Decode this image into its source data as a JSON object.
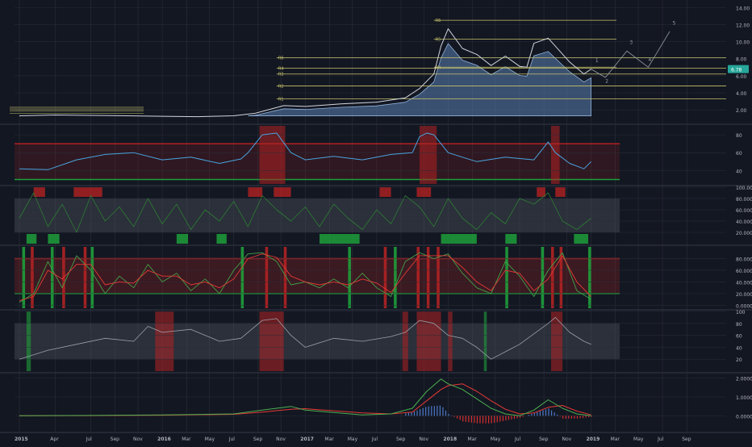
{
  "colors": {
    "background": "#131722",
    "grid": "#2a2e39",
    "axis_text": "#b2b5be",
    "bull": "#26a69a",
    "bear": "#ef5350",
    "band_fill": "#5b7fb0",
    "level_line": "#c6c26a",
    "red_zone": "#b22222",
    "green_zone": "#1f9e3a",
    "rsi_line": "#4aa3df",
    "macd_line": "#4caf50",
    "signal_line": "#e53935",
    "hist_pos": "#4a78c8",
    "hist_neg": "#d32f2f"
  },
  "chart_data": [
    {
      "type": "line",
      "panel": "price",
      "y_axis_ticks": [
        "14.00",
        "12.00",
        "10.00",
        "8.00",
        "6.00",
        "4.00",
        "2.00"
      ],
      "ylim": [
        0.5,
        14.5
      ],
      "last_price_label": "6.78",
      "last_price": 6.78,
      "level_labels": [
        "R6",
        "R4",
        "R3",
        "R2",
        "R1",
        "R6",
        "R5",
        "R4"
      ],
      "level_values": [
        8.1,
        6.9,
        6.2,
        4.8,
        3.3,
        12.5,
        10.3,
        7.0
      ],
      "wave_labels": [
        "1",
        "2",
        "3",
        "4",
        "5"
      ],
      "series": [
        {
          "x": [
            2015.0,
            2015.25,
            2015.5,
            2015.75,
            2016.0,
            2016.25,
            2016.5,
            2016.65,
            2016.85,
            2017.0,
            2017.25,
            2017.5,
            2017.7,
            2017.8,
            2017.9,
            2017.95,
            2018.0,
            2018.1,
            2018.2,
            2018.3,
            2018.4,
            2018.5,
            2018.55,
            2018.6,
            2018.7,
            2018.85,
            2018.95,
            2019.0
          ],
          "values": [
            1.3,
            1.4,
            1.35,
            1.3,
            1.25,
            1.2,
            1.3,
            1.6,
            2.5,
            2.4,
            2.7,
            2.9,
            3.4,
            4.5,
            6.2,
            9.5,
            11.5,
            9.2,
            8.5,
            7.2,
            8.3,
            7.1,
            7.0,
            9.8,
            10.4,
            7.6,
            6.2,
            6.78
          ]
        },
        {
          "x": [
            2019.0,
            2019.1,
            2019.25,
            2019.4,
            2019.55
          ],
          "values": [
            6.78,
            5.8,
            8.9,
            7.0,
            11.2
          ]
        }
      ]
    },
    {
      "type": "line",
      "panel": "rsi",
      "y_axis_ticks": [
        "80",
        "60",
        "40"
      ],
      "ylim": [
        25,
        90
      ],
      "series": [
        {
          "x": [
            2015.0,
            2015.2,
            2015.4,
            2015.6,
            2015.8,
            2016.0,
            2016.2,
            2016.4,
            2016.55,
            2016.6,
            2016.7,
            2016.8,
            2016.9,
            2017.0,
            2017.2,
            2017.4,
            2017.6,
            2017.75,
            2017.8,
            2017.85,
            2017.9,
            2018.0,
            2018.1,
            2018.2,
            2018.4,
            2018.6,
            2018.7,
            2018.75,
            2018.85,
            2018.95,
            2019.0
          ],
          "values": [
            42,
            41,
            52,
            58,
            60,
            52,
            55,
            48,
            53,
            60,
            80,
            82,
            60,
            52,
            56,
            52,
            58,
            60,
            78,
            82,
            80,
            60,
            55,
            50,
            55,
            52,
            72,
            60,
            48,
            42,
            50
          ]
        }
      ]
    },
    {
      "type": "line",
      "panel": "oscillator",
      "y_axis_ticks": [
        "100.0000",
        "80.0000",
        "60.0000",
        "40.0000",
        "20.0000"
      ],
      "ylim": [
        0,
        100
      ],
      "series": [
        {
          "x": [
            2015.0,
            2015.1,
            2015.2,
            2015.3,
            2015.4,
            2015.5,
            2015.6,
            2015.7,
            2015.8,
            2015.9,
            2016.0,
            2016.1,
            2016.2,
            2016.3,
            2016.4,
            2016.5,
            2016.6,
            2016.7,
            2016.8,
            2016.9,
            2017.0,
            2017.1,
            2017.2,
            2017.3,
            2017.4,
            2017.5,
            2017.6,
            2017.7,
            2017.8,
            2017.9,
            2018.0,
            2018.1,
            2018.2,
            2018.3,
            2018.4,
            2018.5,
            2018.6,
            2018.7,
            2018.8,
            2018.9,
            2019.0
          ],
          "values": [
            45,
            90,
            30,
            70,
            20,
            85,
            40,
            65,
            30,
            80,
            35,
            70,
            25,
            60,
            40,
            75,
            30,
            85,
            60,
            40,
            65,
            30,
            70,
            45,
            25,
            60,
            35,
            85,
            65,
            30,
            80,
            45,
            25,
            55,
            35,
            80,
            70,
            90,
            40,
            25,
            45
          ]
        }
      ]
    },
    {
      "type": "line",
      "panel": "stochastic",
      "y_axis_ticks": [
        "80.0000",
        "60.0000",
        "40.0000",
        "20.0000",
        "0.0000"
      ],
      "ylim": [
        -5,
        100
      ],
      "series": [
        {
          "x": [
            2015.0,
            2015.1,
            2015.2,
            2015.3,
            2015.4,
            2015.5,
            2015.6,
            2015.7,
            2015.8,
            2015.9,
            2016.0,
            2016.1,
            2016.2,
            2016.3,
            2016.4,
            2016.5,
            2016.6,
            2016.7,
            2016.8,
            2016.9,
            2017.0,
            2017.1,
            2017.2,
            2017.3,
            2017.4,
            2017.5,
            2017.6,
            2017.7,
            2017.8,
            2017.9,
            2018.0,
            2018.1,
            2018.2,
            2018.3,
            2018.4,
            2018.5,
            2018.6,
            2018.7,
            2018.8,
            2018.9,
            2019.0
          ],
          "values": [
            5,
            20,
            75,
            30,
            85,
            60,
            20,
            50,
            30,
            70,
            40,
            55,
            25,
            45,
            20,
            60,
            88,
            90,
            75,
            35,
            40,
            30,
            45,
            30,
            55,
            30,
            15,
            75,
            90,
            80,
            88,
            55,
            30,
            20,
            75,
            50,
            15,
            60,
            90,
            25,
            10
          ]
        },
        {
          "x": [
            2015.0,
            2015.1,
            2015.2,
            2015.3,
            2015.4,
            2015.5,
            2015.6,
            2015.7,
            2015.8,
            2015.9,
            2016.0,
            2016.1,
            2016.2,
            2016.3,
            2016.4,
            2016.5,
            2016.6,
            2016.7,
            2016.8,
            2016.9,
            2017.0,
            2017.1,
            2017.2,
            2017.3,
            2017.4,
            2017.5,
            2017.6,
            2017.7,
            2017.8,
            2017.9,
            2018.0,
            2018.1,
            2018.2,
            2018.3,
            2018.4,
            2018.5,
            2018.6,
            2018.7,
            2018.8,
            2018.9,
            2019.0
          ],
          "values": [
            8,
            15,
            60,
            45,
            70,
            70,
            35,
            40,
            38,
            60,
            50,
            50,
            35,
            40,
            30,
            45,
            80,
            88,
            82,
            50,
            40,
            35,
            40,
            35,
            45,
            38,
            22,
            55,
            85,
            85,
            85,
            65,
            40,
            25,
            60,
            55,
            25,
            45,
            85,
            40,
            15
          ]
        }
      ]
    },
    {
      "type": "line",
      "panel": "rsi2",
      "y_axis_ticks": [
        "100",
        "80",
        "60",
        "40",
        "20"
      ],
      "ylim": [
        0,
        100
      ],
      "series": [
        {
          "x": [
            2015.0,
            2015.2,
            2015.4,
            2015.6,
            2015.8,
            2015.9,
            2016.0,
            2016.2,
            2016.4,
            2016.55,
            2016.7,
            2016.8,
            2016.9,
            2017.0,
            2017.2,
            2017.4,
            2017.6,
            2017.7,
            2017.8,
            2017.9,
            2018.0,
            2018.1,
            2018.2,
            2018.3,
            2018.5,
            2018.7,
            2018.75,
            2018.85,
            2018.95,
            2019.0
          ],
          "values": [
            20,
            35,
            45,
            55,
            50,
            75,
            65,
            70,
            50,
            55,
            85,
            88,
            60,
            40,
            55,
            50,
            58,
            65,
            85,
            80,
            60,
            55,
            40,
            20,
            45,
            80,
            90,
            65,
            50,
            45
          ]
        }
      ]
    },
    {
      "type": "line",
      "panel": "macd",
      "y_axis_ticks": [
        "2.0000",
        "1.0000",
        "0.0000"
      ],
      "ylim": [
        -0.8,
        2.2
      ],
      "series": [
        {
          "x": [
            2015.0,
            2015.5,
            2016.0,
            2016.5,
            2016.7,
            2016.9,
            2017.0,
            2017.4,
            2017.6,
            2017.75,
            2017.85,
            2017.95,
            2018.0,
            2018.1,
            2018.2,
            2018.3,
            2018.4,
            2018.5,
            2018.6,
            2018.7,
            2018.8,
            2018.9,
            2019.0
          ],
          "values": [
            0.0,
            0.02,
            0.05,
            0.1,
            0.3,
            0.5,
            0.3,
            0.05,
            0.1,
            0.4,
            1.3,
            1.95,
            1.7,
            1.4,
            0.9,
            0.4,
            0.1,
            0.0,
            0.3,
            0.85,
            0.4,
            0.1,
            0.0
          ]
        },
        {
          "x": [
            2015.0,
            2015.5,
            2016.0,
            2016.5,
            2016.7,
            2016.9,
            2017.0,
            2017.4,
            2017.6,
            2017.75,
            2017.85,
            2017.95,
            2018.0,
            2018.1,
            2018.2,
            2018.3,
            2018.4,
            2018.5,
            2018.6,
            2018.7,
            2018.8,
            2018.9,
            2019.0
          ],
          "values": [
            0.0,
            0.01,
            0.03,
            0.08,
            0.2,
            0.35,
            0.38,
            0.15,
            0.1,
            0.2,
            0.8,
            1.4,
            1.6,
            1.7,
            1.3,
            0.8,
            0.35,
            0.1,
            0.15,
            0.45,
            0.55,
            0.25,
            0.05
          ]
        }
      ]
    }
  ],
  "x_axis": {
    "labels": [
      "2015",
      "Apr",
      "Jul",
      "Sep",
      "Nov",
      "2016",
      "Mar",
      "May",
      "Jul",
      "Sep",
      "Nov",
      "2017",
      "Mar",
      "May",
      "Jul",
      "Sep",
      "Nov",
      "2018",
      "Mar",
      "May",
      "Jul",
      "Sep",
      "Nov",
      "2019",
      "Mar",
      "May",
      "Jul",
      "Sep"
    ],
    "values": [
      2015.0,
      2015.25,
      2015.5,
      2015.67,
      2015.83,
      2016.0,
      2016.17,
      2016.33,
      2016.5,
      2016.67,
      2016.83,
      2017.0,
      2017.17,
      2017.33,
      2017.5,
      2017.67,
      2017.83,
      2018.0,
      2018.17,
      2018.33,
      2018.5,
      2018.67,
      2018.83,
      2019.0,
      2019.17,
      2019.33,
      2019.5,
      2019.67
    ]
  }
}
